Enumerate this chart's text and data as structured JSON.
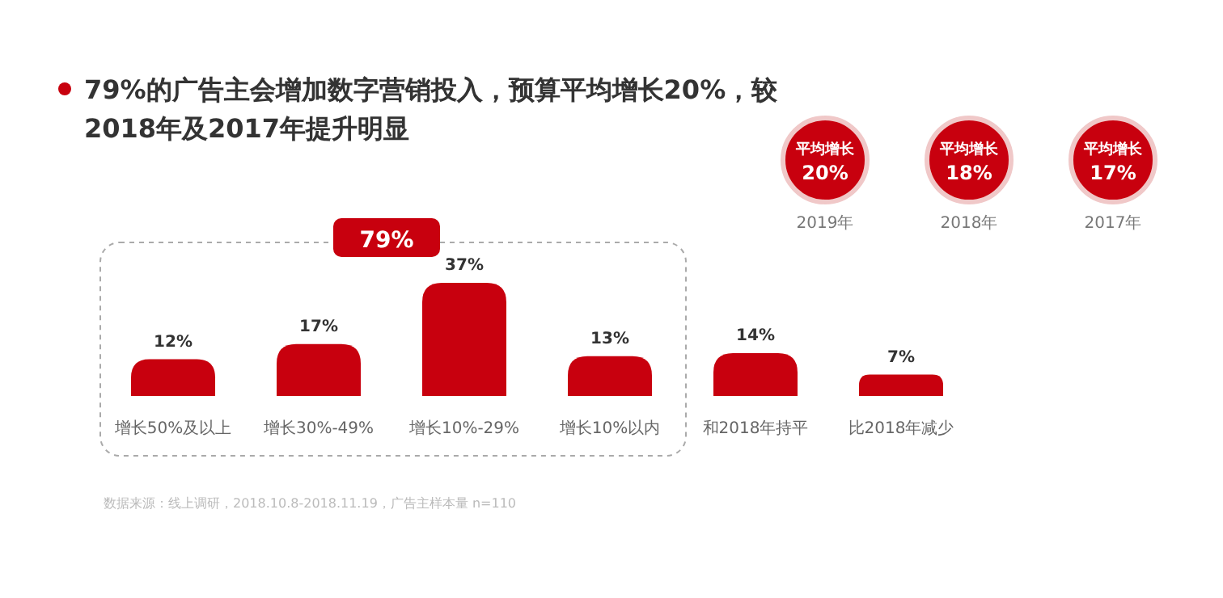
{
  "chart_data": {
    "type": "bar",
    "title": "79%的广告主会增加数字营销投入，预算平均增长20%，较2018年及2017年提升明显",
    "categories": [
      "增长50%及以上",
      "增长30%-49%",
      "增长10%-29%",
      "增长10%以内",
      "和2018年持平",
      "比2018年减少"
    ],
    "values": [
      12,
      17,
      37,
      13,
      14,
      7
    ],
    "color": "#c8000e",
    "data_labels": true,
    "value_labels": [
      "12%",
      "17%",
      "37%",
      "13%",
      "14%",
      "7%"
    ],
    "annotations": [
      "79%",
      "平均增长",
      "20%",
      "2019年",
      "平均增长",
      "18%",
      "2018年",
      "平均增长",
      "17%",
      "2017年",
      "数据来源：线上调研，2018.10.8-2018.11.19，广告主样本量 n=110"
    ]
  }
}
